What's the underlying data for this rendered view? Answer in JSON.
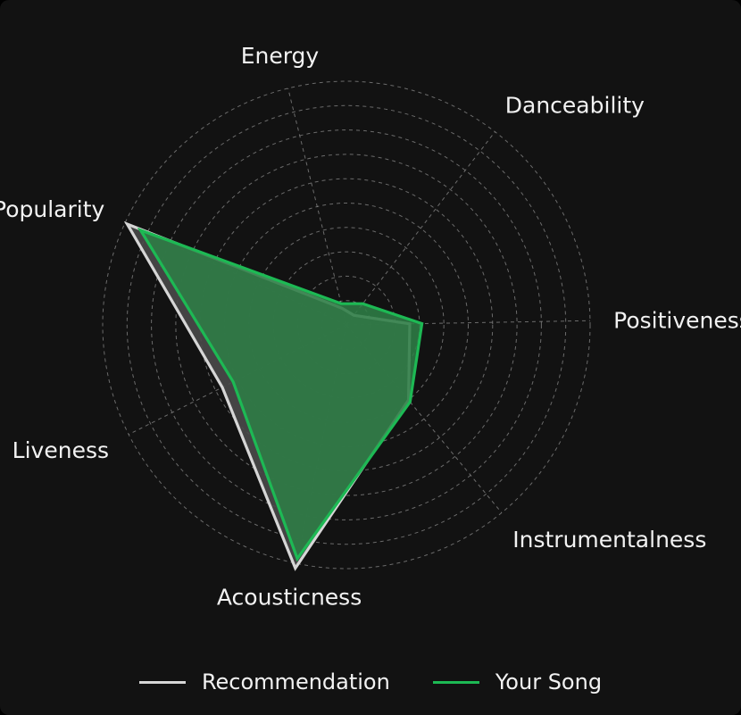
{
  "chart_data": {
    "type": "radar",
    "title": "",
    "axes": [
      "Positiveness",
      "Danceability",
      "Energy",
      "Popularity",
      "Liveness",
      "Acousticness",
      "Instrumentalness"
    ],
    "rmax": 1.0,
    "ring_count": 10,
    "grid": true,
    "legend_position": "bottom",
    "series": [
      {
        "name": "Recommendation",
        "color": "#d6d6d6",
        "fill": "#4a4a4a",
        "values": [
          0.26,
          0.05,
          0.07,
          0.99,
          0.57,
          1.02,
          0.4
        ]
      },
      {
        "name": "Your Song",
        "color": "#1db954",
        "fill": "#2e7d46",
        "values": [
          0.31,
          0.11,
          0.09,
          0.93,
          0.52,
          0.98,
          0.41
        ]
      }
    ]
  }
}
